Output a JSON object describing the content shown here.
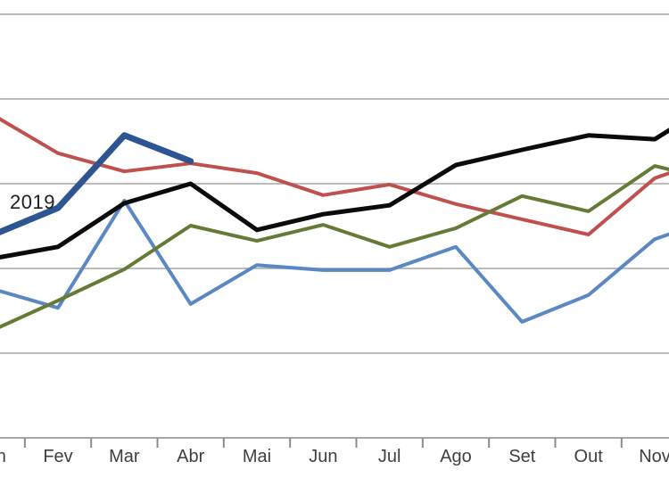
{
  "chart_data": {
    "type": "line",
    "title": "",
    "x_labels": [
      "Jan",
      "Fev",
      "Mar",
      "Abr",
      "Mai",
      "Jun",
      "Jul",
      "Ago",
      "Set",
      "Out",
      "Nov"
    ],
    "x_axis_note": "Portuguese month abbreviations; chart is cropped: Jan label mostly cut off at left edge, lines continue past Nov toward right edge (Dez off-screen)",
    "y_axis": {
      "labels_visible": false,
      "scale": "arbitrary 0-100 index (no y-axis labels visible in crop); horizontal gridlines every 20 units",
      "gridline_values": [
        0,
        20,
        40,
        60,
        80,
        100
      ]
    },
    "legend": "none; only inline text label '2019' beside the thick dark-blue line",
    "series": [
      {
        "name": "",
        "color_name": "light-blue",
        "color": "#5B87C5",
        "thickness": 4,
        "values": [
          35.2,
          30.7,
          56.0,
          31.6,
          40.8,
          39.6,
          39.6,
          45.1,
          27.4,
          33.7,
          46.9
        ],
        "continuation_value": 52.4
      },
      {
        "name": "",
        "color_name": "red",
        "color": "#C0504D",
        "thickness": 4,
        "values": [
          76.4,
          67.2,
          62.9,
          64.8,
          62.5,
          57.3,
          59.8,
          55.2,
          51.6,
          48.0,
          61.3
        ],
        "continuation_value": 66.7
      },
      {
        "name": "",
        "color_name": "olive-green",
        "color": "#647A35",
        "thickness": 4,
        "values": [
          25.3,
          32.4,
          39.8,
          50.1,
          46.5,
          50.3,
          45.1,
          49.5,
          57.1,
          53.5,
          64.2
        ],
        "continuation_value": 60.4
      },
      {
        "name": "",
        "color_name": "black",
        "color": "#0B0B0B",
        "thickness": 5,
        "values": [
          42.3,
          45.1,
          55.4,
          60.0,
          49.1,
          52.8,
          54.9,
          64.4,
          68.0,
          71.4,
          70.5
        ],
        "continuation_value": 80.2
      },
      {
        "name": "2019",
        "color_name": "dark-blue",
        "color": "#2D5592",
        "thickness": 7,
        "values": [
          47.8,
          54.3,
          71.4,
          65.3
        ],
        "continuation_value": null,
        "note": "series ends at Abr"
      }
    ],
    "colors": {
      "gridline": "#A6A6A6",
      "axis": "#8C8C8C",
      "tick": "#8C8C8C",
      "month_label": "#3F3F3F",
      "background": "#FFFFFF"
    }
  }
}
